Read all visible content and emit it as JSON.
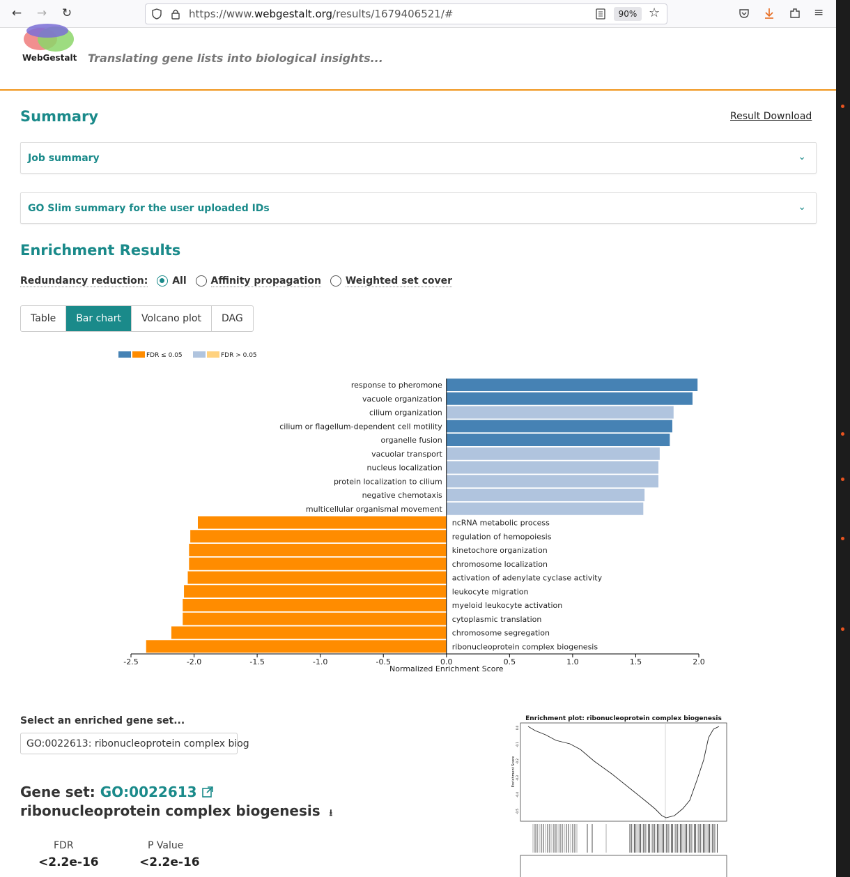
{
  "browser": {
    "url_prefix": "https://www.",
    "url_domain": "webgestalt.org",
    "url_path": "/results/1679406521/#",
    "zoom": "90%"
  },
  "header": {
    "brand": "WebGestalt",
    "tagline": "Translating gene lists into biological insights..."
  },
  "summary": {
    "title": "Summary",
    "download_link": "Result Download",
    "panels": [
      {
        "label": "Job summary"
      },
      {
        "label": "GO Slim summary for the user uploaded IDs"
      }
    ]
  },
  "enrichment": {
    "title": "Enrichment Results",
    "redundancy_label": "Redundancy reduction:",
    "options": [
      "All",
      "Affinity propagation",
      "Weighted set cover"
    ],
    "selected_option": "All",
    "tabs": [
      "Table",
      "Bar chart",
      "Volcano plot",
      "DAG"
    ],
    "active_tab": "Bar chart"
  },
  "legend": {
    "sig_label": "FDR ≤ 0.05",
    "nonsig_label": "FDR > 0.05"
  },
  "colors": {
    "teal": "#1a8a8a",
    "pos_sig": "#4682b4",
    "pos_nonsig": "#b0c4de",
    "neg_sig": "#ff8c00",
    "neg_nonsig": "#ffd27f"
  },
  "chart_data": {
    "type": "bar",
    "orientation": "horizontal",
    "xlabel": "Normalized Enrichment Score",
    "xlim": [
      -2.5,
      2.0
    ],
    "xticks": [
      "-2.5",
      "-2.0",
      "-1.5",
      "-1.0",
      "-0.5",
      "0.0",
      "0.5",
      "1.0",
      "1.5",
      "2.0"
    ],
    "categories": [
      "response to pheromone",
      "vacuole organization",
      "cilium organization",
      "cilium or flagellum-dependent cell motility",
      "organelle fusion",
      "vacuolar transport",
      "nucleus localization",
      "protein localization to cilium",
      "negative chemotaxis",
      "multicellular organismal movement",
      "ncRNA metabolic process",
      "regulation of hemopoiesis",
      "kinetochore organization",
      "chromosome localization",
      "activation of adenylate cyclase activity",
      "leukocyte migration",
      "myeloid leukocyte activation",
      "cytoplasmic translation",
      "chromosome segregation",
      "ribonucleoprotein complex biogenesis"
    ],
    "values": [
      1.99,
      1.95,
      1.8,
      1.79,
      1.77,
      1.69,
      1.68,
      1.68,
      1.57,
      1.56,
      -1.97,
      -2.03,
      -2.04,
      -2.04,
      -2.05,
      -2.08,
      -2.09,
      -2.09,
      -2.18,
      -2.38
    ],
    "significant": [
      true,
      true,
      false,
      true,
      true,
      false,
      false,
      false,
      false,
      false,
      true,
      true,
      true,
      true,
      true,
      true,
      true,
      true,
      true,
      true
    ]
  },
  "gene_set": {
    "select_label": "Select an enriched gene set...",
    "selected": "GO:0022613: ribonucleoprotein complex biog",
    "heading_prefix": "Gene set:",
    "id": "GO:0022613",
    "name": "ribonucleoprotein complex biogenesis",
    "fdr_label": "FDR",
    "fdr_value": "<2.2e-16",
    "pvalue_label": "P Value",
    "pvalue_value": "<2.2e-16"
  },
  "enrichment_plot": {
    "title": "Enrichment plot: ribonucleoprotein complex biogenesis",
    "ylabel": "Enrichment Score",
    "yticks": [
      "0.0",
      "-0.1",
      "-0.2",
      "-0.3",
      "-0.4",
      "-0.5"
    ]
  }
}
